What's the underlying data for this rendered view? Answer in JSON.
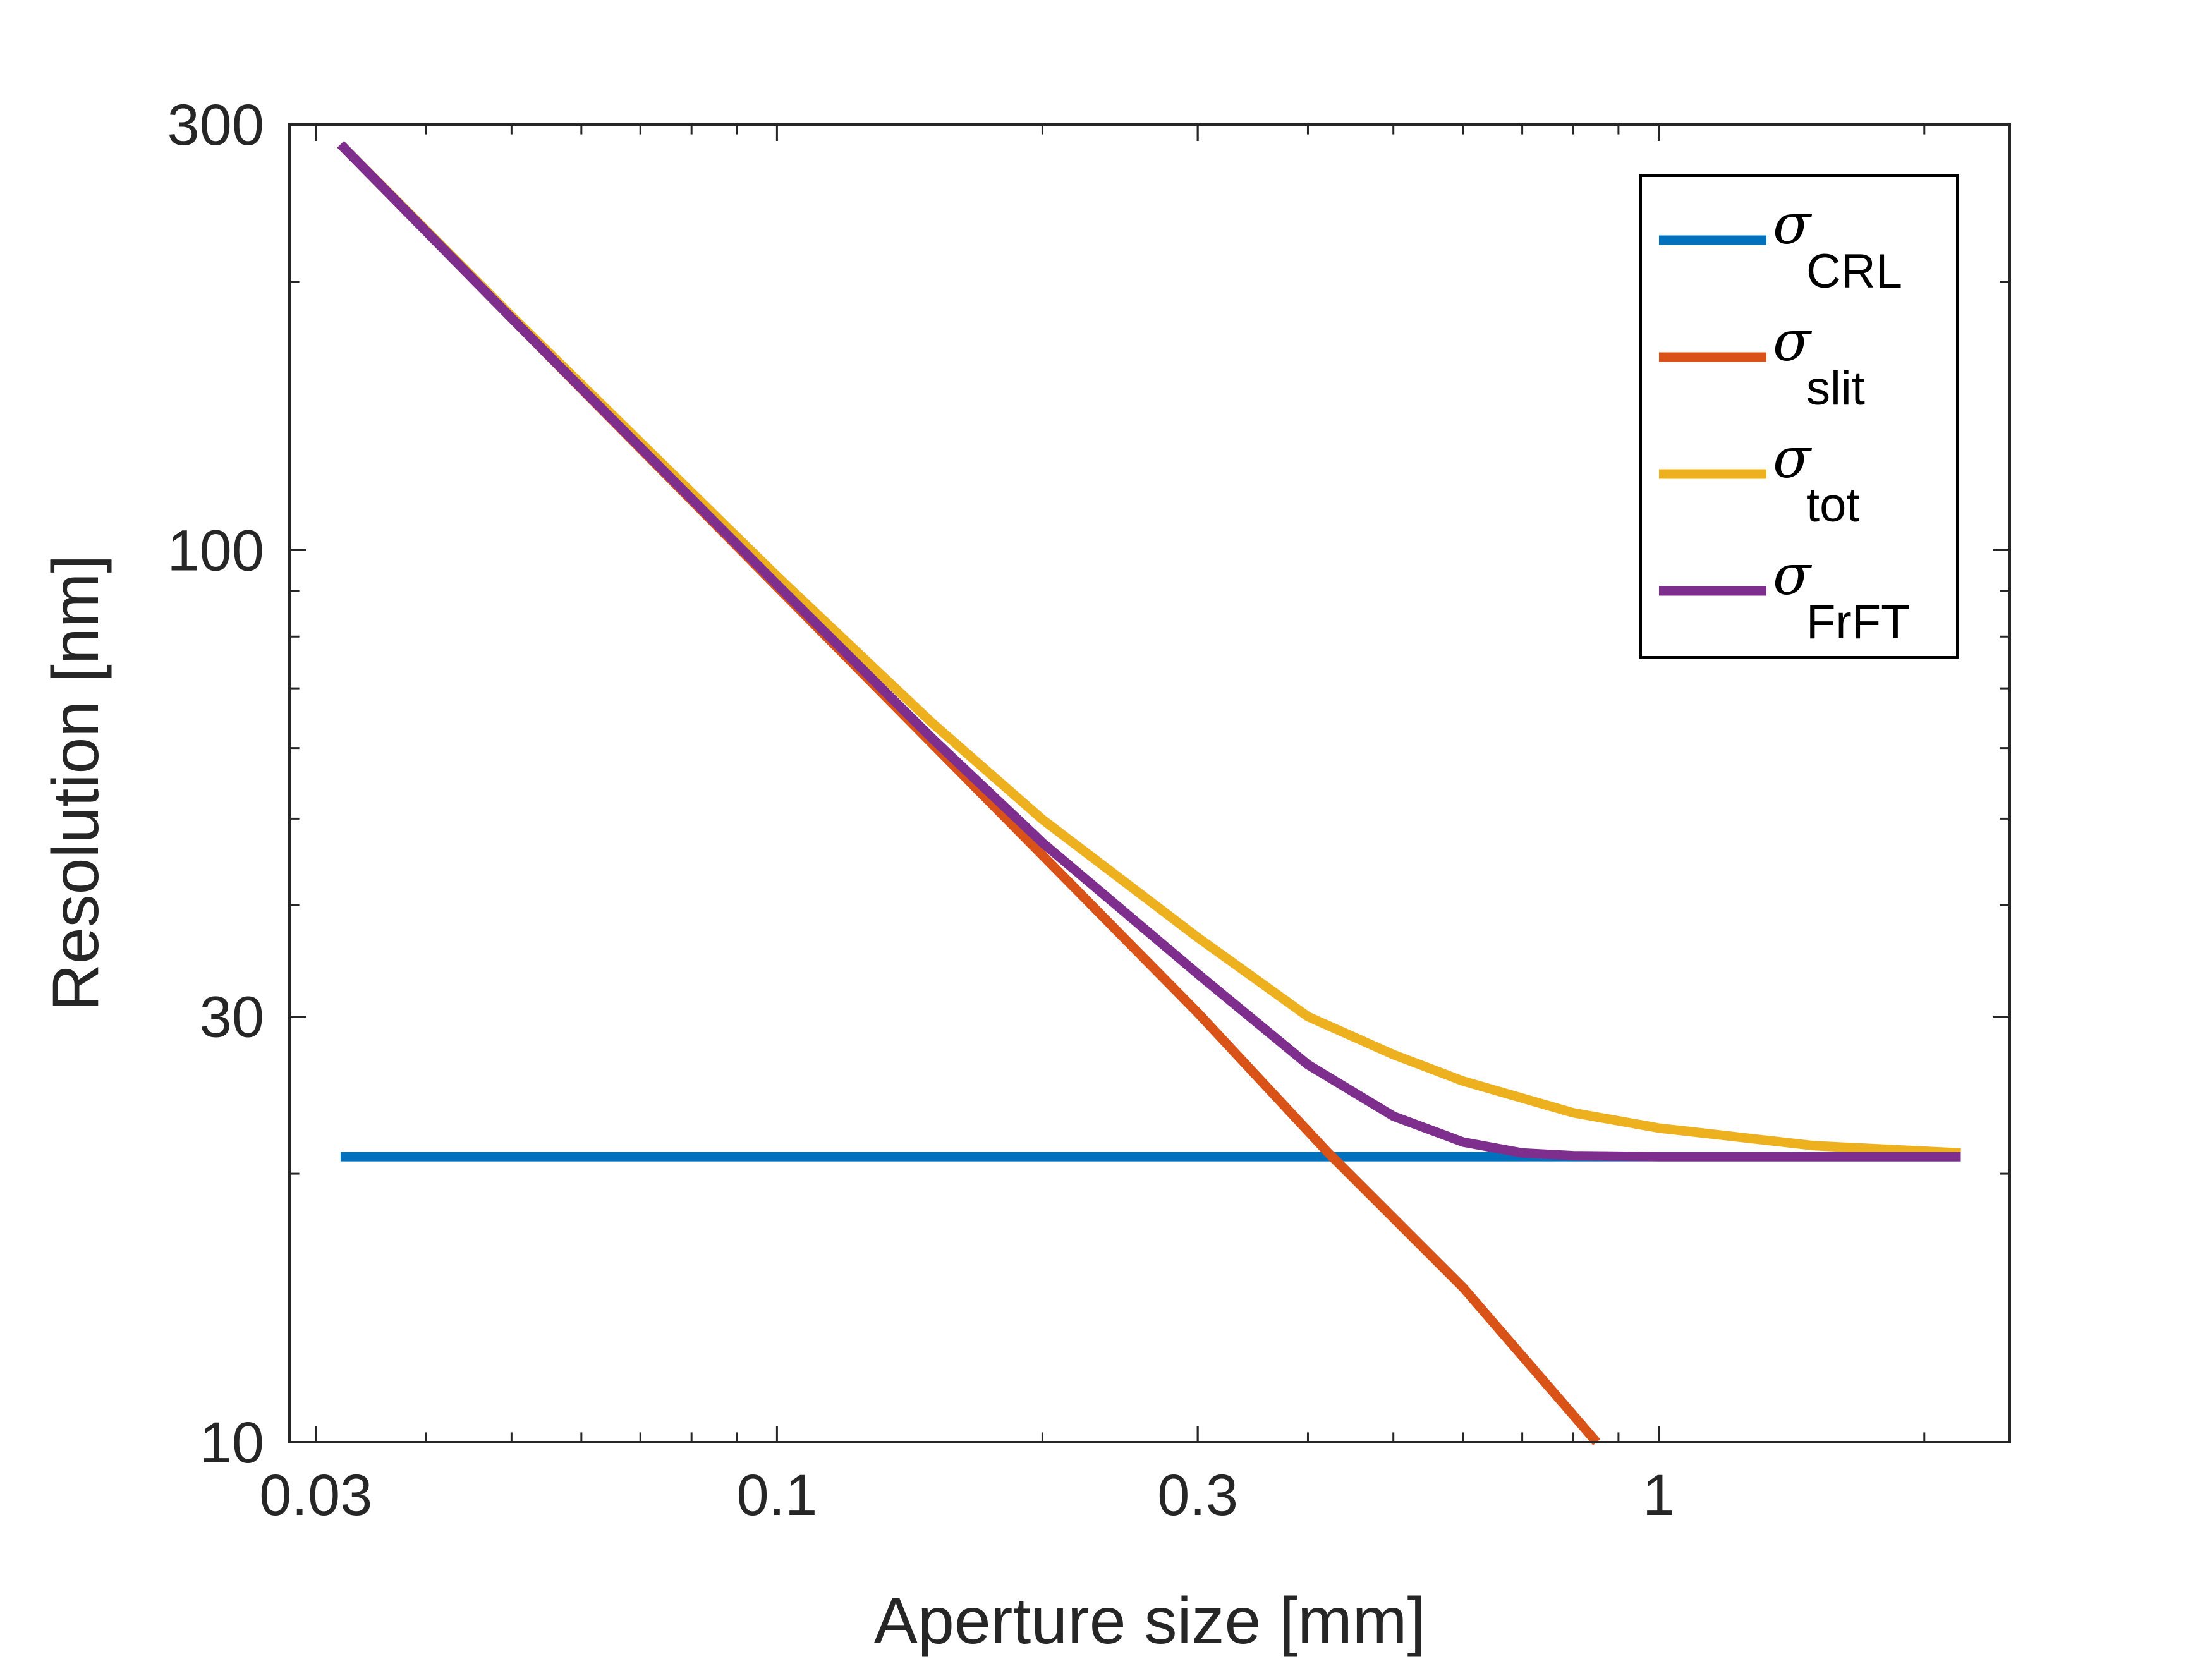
{
  "chart_data": {
    "type": "line",
    "xlabel": "Aperture size [mm]",
    "ylabel": "Resolution [nm]",
    "xscale": "log",
    "yscale": "log",
    "xlim": [
      0.028,
      2.5
    ],
    "ylim": [
      10,
      300
    ],
    "xticks": [
      {
        "value": 0.03,
        "label": "0.03"
      },
      {
        "value": 0.1,
        "label": "0.1"
      },
      {
        "value": 0.3,
        "label": "0.3"
      },
      {
        "value": 1,
        "label": "1"
      }
    ],
    "yticks": [
      {
        "value": 10,
        "label": "10"
      },
      {
        "value": 30,
        "label": "30"
      },
      {
        "value": 100,
        "label": "100"
      },
      {
        "value": 300,
        "label": "300"
      }
    ],
    "grid": false,
    "legend_position": "top-right",
    "legend_symbol": "σ",
    "series": [
      {
        "name": "CRL",
        "color": "#0072BD",
        "x": [
          0.032,
          2.2
        ],
        "y": [
          20.9,
          20.9
        ]
      },
      {
        "name": "slit",
        "color": "#D95319",
        "x": [
          0.032,
          0.05,
          0.1,
          0.2,
          0.3,
          0.42,
          0.6,
          0.85
        ],
        "y": [
          285,
          182,
          91,
          45.5,
          30.3,
          21.2,
          14.9,
          10.0
        ]
      },
      {
        "name": "tot",
        "color": "#EDB120",
        "x": [
          0.032,
          0.05,
          0.1,
          0.15,
          0.2,
          0.3,
          0.4,
          0.5,
          0.6,
          0.8,
          1.0,
          1.5,
          2.2
        ],
        "y": [
          285,
          183,
          93.5,
          64,
          49.9,
          36.8,
          30.0,
          27.2,
          25.4,
          23.4,
          22.5,
          21.5,
          21.1
        ]
      },
      {
        "name": "FrFT",
        "color": "#7E2F8E",
        "x": [
          0.032,
          0.05,
          0.1,
          0.15,
          0.2,
          0.3,
          0.4,
          0.5,
          0.6,
          0.7,
          0.8,
          1.0,
          1.5,
          2.2
        ],
        "y": [
          285,
          182,
          91.5,
          61.5,
          47,
          33.5,
          26.5,
          23.2,
          21.7,
          21.1,
          20.95,
          20.9,
          20.9,
          20.9
        ]
      }
    ]
  }
}
